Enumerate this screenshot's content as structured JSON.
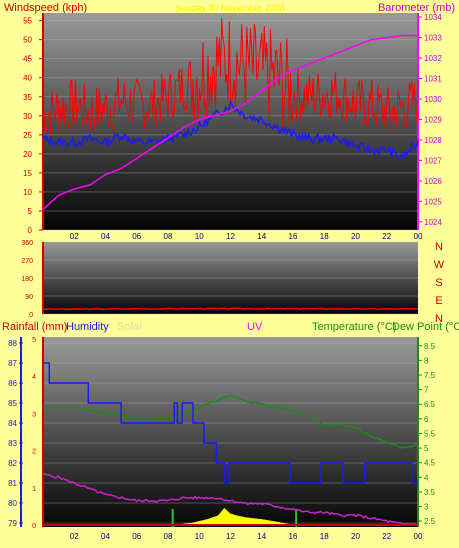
{
  "header": {
    "windspeed_label": "Windspeed (kph)",
    "date_title": "Sunday 30 November 2008",
    "barometer_label": "Barometer (mb)"
  },
  "bottom_header": {
    "rainfall_label": "Rainfall (mm)",
    "humidity_label": "Humidity",
    "solar_label": "Solar",
    "uv_label": "UV",
    "temperature_label": "Temperature (°C)",
    "dewpoint_label": "Dew Point (°C)"
  },
  "compass": {
    "labels": [
      "N",
      "W",
      "S",
      "E",
      "N"
    ]
  },
  "colors": {
    "background": "#ffff99",
    "windspeed": "#ff0000",
    "wind_average": "#1a1aff",
    "barometer": "#ff00ff",
    "rainfall": "#cc0000",
    "humidity": "#1a1aff",
    "temperature": "#1a8a1a",
    "dewpoint": "#cc22cc",
    "solar": "#ffff00",
    "uv": "#ff00ff"
  },
  "chart_data": [
    {
      "type": "line",
      "name": "wind-barometer",
      "x_ticks": [
        "02",
        "04",
        "06",
        "08",
        "10",
        "12",
        "14",
        "16",
        "18",
        "20",
        "22",
        "00"
      ],
      "y_left_ticks": [
        "0",
        "5",
        "10",
        "15",
        "20",
        "25",
        "30",
        "35",
        "40",
        "45",
        "50",
        "55"
      ],
      "y_right_ticks": [
        "1024",
        "1025",
        "1026",
        "1027",
        "1028",
        "1029",
        "1030",
        "1031",
        "1032",
        "1033",
        "1034"
      ],
      "ylim_left": [
        0,
        57
      ],
      "ylim_right": [
        1023.6,
        1034.2
      ],
      "xlim": [
        0,
        24
      ],
      "series": [
        {
          "key": "gust",
          "axis": "left",
          "x": [
            0,
            1,
            2,
            3,
            4,
            5,
            6,
            7,
            8,
            9,
            10,
            11,
            12,
            13,
            14,
            15,
            16,
            17,
            18,
            19,
            20,
            21,
            22,
            23,
            24
          ],
          "values": [
            30,
            32,
            33,
            31,
            32,
            34,
            33,
            33,
            35,
            38,
            41,
            44,
            45,
            43,
            41,
            40,
            36,
            35,
            36,
            36,
            33,
            33,
            31,
            32,
            34
          ]
        },
        {
          "key": "average",
          "axis": "left",
          "x": [
            0,
            1,
            2,
            3,
            4,
            5,
            6,
            7,
            8,
            9,
            10,
            11,
            12,
            13,
            14,
            15,
            16,
            17,
            18,
            19,
            20,
            21,
            22,
            23,
            24
          ],
          "values": [
            24,
            23,
            23,
            24,
            23,
            25,
            23,
            23,
            24,
            25,
            27,
            30,
            33,
            30,
            29,
            27,
            25,
            24,
            24,
            24,
            22,
            21,
            21,
            19,
            23
          ]
        },
        {
          "key": "barometer",
          "axis": "right",
          "x": [
            0,
            1,
            2,
            3,
            4,
            5,
            6,
            7,
            8,
            9,
            10,
            11,
            12,
            13,
            14,
            15,
            16,
            17,
            18,
            19,
            20,
            21,
            22,
            23,
            24
          ],
          "values": [
            1024.6,
            1025.3,
            1025.6,
            1025.8,
            1026.3,
            1026.6,
            1027.1,
            1027.6,
            1028.1,
            1028.6,
            1029.0,
            1029.2,
            1029.4,
            1029.8,
            1030.4,
            1031.0,
            1031.4,
            1031.7,
            1032.0,
            1032.3,
            1032.6,
            1032.9,
            1033.0,
            1033.1,
            1033.1
          ]
        }
      ]
    },
    {
      "type": "line",
      "name": "wind-direction",
      "y_ticks": [
        "360",
        "270",
        "180",
        "90",
        "0"
      ],
      "ylim": [
        0,
        360
      ],
      "series": [
        {
          "key": "direction",
          "x": [
            0,
            6,
            12,
            18,
            24
          ],
          "values": [
            24,
            26,
            27,
            26,
            25
          ]
        }
      ]
    },
    {
      "type": "line",
      "name": "rain-humidity-temperature",
      "x_ticks": [
        "02",
        "04",
        "06",
        "08",
        "10",
        "12",
        "14",
        "16",
        "18",
        "20",
        "22",
        "00"
      ],
      "y_humidity_ticks": [
        "79",
        "80",
        "81",
        "82",
        "83",
        "84",
        "85",
        "86",
        "87",
        "88"
      ],
      "y_rain_ticks": [
        "0",
        "1",
        "2",
        "3",
        "4",
        "5"
      ],
      "y_temp_ticks": [
        "2.5",
        "3",
        "3.5",
        "4",
        "4.5",
        "5",
        "5.5",
        "6",
        "6.5",
        "7",
        "7.5",
        "8",
        "8.5"
      ],
      "ylim_humidity": [
        79,
        88
      ],
      "ylim_temp": [
        2.3,
        8.8
      ],
      "ylim_rain": [
        0,
        5
      ],
      "series": [
        {
          "key": "humidity",
          "x": [
            0,
            0.4,
            0.4,
            2.9,
            2.9,
            5.0,
            5.0,
            7.0,
            7.0,
            8.4,
            8.4,
            8.6,
            8.6,
            8.9,
            8.9,
            9.6,
            9.6,
            10.3,
            10.3,
            11.1,
            11.1,
            11.6,
            11.6,
            11.9,
            11.9,
            15.8,
            15.8,
            17.8,
            17.8,
            19.2,
            19.2,
            19.6,
            19.6,
            20.6,
            20.6,
            22.6,
            22.6,
            23.6,
            23.6,
            24
          ],
          "values": [
            87,
            87,
            86,
            86,
            85,
            85,
            84,
            84,
            84,
            84,
            85,
            85,
            84,
            84,
            85,
            85,
            84,
            84,
            83,
            83,
            82,
            82,
            81,
            81,
            82,
            82,
            81,
            81,
            82,
            82,
            81,
            81,
            81,
            81,
            82,
            82,
            82,
            82,
            81,
            81
          ]
        },
        {
          "key": "temperature",
          "x": [
            0,
            2,
            4,
            6,
            7,
            8,
            9,
            10,
            11,
            12,
            13,
            14,
            15,
            16,
            17,
            18,
            19,
            20,
            21,
            22,
            23,
            24
          ],
          "values": [
            6.4,
            6.4,
            6.2,
            6.0,
            6.0,
            6.0,
            6.2,
            6.4,
            6.6,
            6.8,
            6.6,
            6.5,
            6.4,
            6.3,
            6.1,
            5.8,
            5.8,
            5.7,
            5.4,
            5.2,
            5.0,
            5.1
          ]
        },
        {
          "key": "dewpoint",
          "x": [
            0,
            1,
            2,
            3,
            4,
            5,
            6,
            7,
            8,
            9,
            10,
            11,
            12,
            13,
            14,
            15,
            16,
            17,
            18,
            19,
            20,
            21,
            22,
            23,
            24
          ],
          "values": [
            4.1,
            4.0,
            3.8,
            3.6,
            3.4,
            3.3,
            3.2,
            3.2,
            3.2,
            3.3,
            3.3,
            3.3,
            3.2,
            3.1,
            3.1,
            3.0,
            2.9,
            2.8,
            2.8,
            2.7,
            2.7,
            2.6,
            2.5,
            2.4,
            2.4
          ]
        },
        {
          "key": "rainfall",
          "x": [
            0,
            24
          ],
          "values": [
            0,
            0
          ]
        },
        {
          "key": "solar",
          "x": [
            8.5,
            9.5,
            10.5,
            11.2,
            11.6,
            12.0,
            12.4,
            13.0,
            14.0,
            15.0,
            16.0
          ],
          "values": [
            0,
            0.05,
            0.15,
            0.25,
            0.45,
            0.3,
            0.25,
            0.2,
            0.15,
            0.08,
            0
          ]
        }
      ],
      "markers_x": [
        8.3,
        16.2
      ]
    }
  ]
}
